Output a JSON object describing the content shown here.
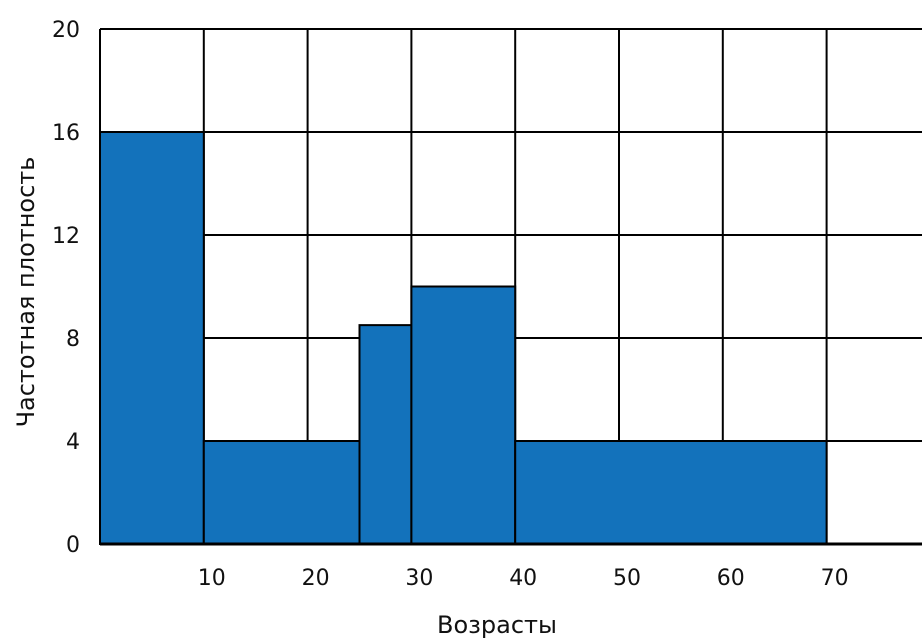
{
  "chart_data": {
    "type": "bar",
    "title": "",
    "xlabel": "Возрасты",
    "ylabel": "Частотная плотность",
    "xlim": [
      0,
      80
    ],
    "ylim": [
      0,
      20
    ],
    "x_ticks": [
      10,
      20,
      30,
      40,
      50,
      60,
      70
    ],
    "y_ticks": [
      0,
      4,
      8,
      12,
      16,
      20
    ],
    "grid": true,
    "bar_color": "#1372bb",
    "bins": [
      {
        "start": 0,
        "end": 10,
        "value": 16
      },
      {
        "start": 10,
        "end": 25,
        "value": 4
      },
      {
        "start": 25,
        "end": 30,
        "value": 8.5
      },
      {
        "start": 30,
        "end": 40,
        "value": 10
      },
      {
        "start": 40,
        "end": 70,
        "value": 4
      }
    ]
  }
}
